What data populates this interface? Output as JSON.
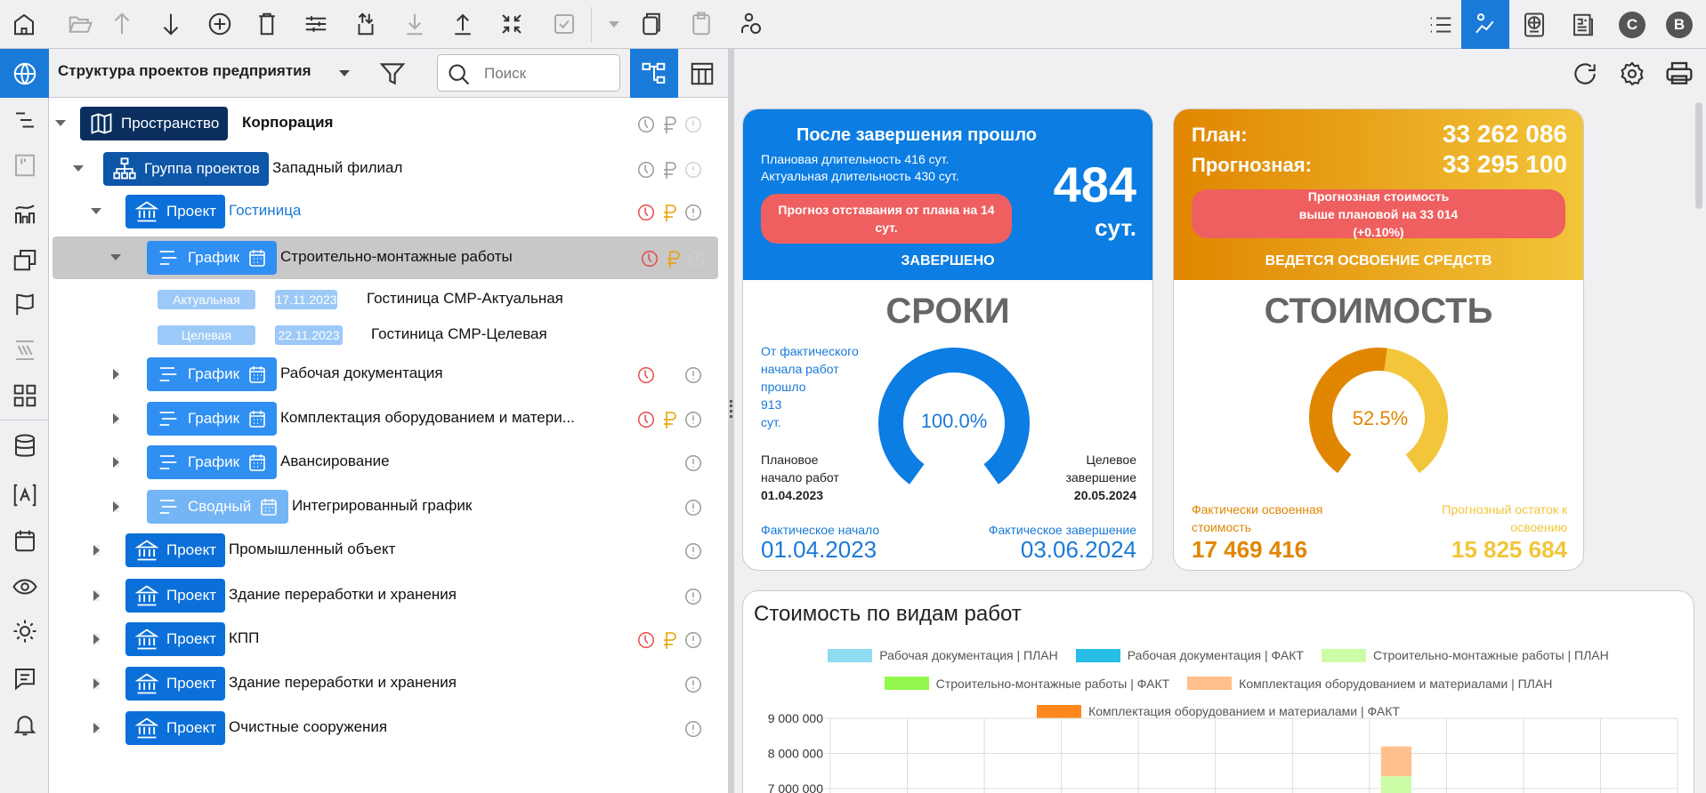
{
  "toolbar": {
    "icons": [
      "home-icon",
      "folder-open-icon",
      "arrow-up-icon",
      "arrow-down-icon",
      "add-circle-icon",
      "trash-icon",
      "sliders-icon",
      "sort-icon",
      "move-down-icon",
      "move-up-icon",
      "collapse-icon",
      "checkbox-icon",
      "dropdown-icon",
      "copy-icon",
      "paste-icon",
      "user-settings-icon"
    ],
    "right_icons": [
      "list-icon",
      "analytics-icon",
      "globe-document-icon",
      "newspaper-icon",
      "c-badge-icon",
      "b-badge-icon"
    ],
    "c_badge": "C",
    "b_badge": "B"
  },
  "panel": {
    "title": "Структура проектов предприятия",
    "search_placeholder": "Поиск"
  },
  "tree": [
    {
      "level": 0,
      "type": "space",
      "chip": "Пространство",
      "name": "Корпорация",
      "bold": true,
      "expanded": true,
      "status": {
        "clock": "gray",
        "ruble": "gray",
        "alert": "light"
      }
    },
    {
      "level": 1,
      "type": "group",
      "chip": "Группа проектов",
      "name": "Западный филиал",
      "expanded": true,
      "status": {
        "clock": "gray",
        "ruble": "gray",
        "alert": "light"
      }
    },
    {
      "level": 2,
      "type": "project",
      "chip": "Проект",
      "name": "Гостиница",
      "link": true,
      "expanded": true,
      "status": {
        "clock": "red",
        "ruble": "orange",
        "alert": "gray"
      }
    },
    {
      "level": 3,
      "type": "graf",
      "chip": "График",
      "name": "Строительно-монтажные работы",
      "expanded": true,
      "selected": true,
      "status": {
        "clock": "red",
        "ruble": "orange",
        "alert": "light"
      }
    },
    {
      "level": 4,
      "type": "version",
      "tag": "Актуальная",
      "date": "17.11.2023",
      "name": "Гостиница СМР-Актуальная"
    },
    {
      "level": 4,
      "type": "version",
      "tag": "Целевая",
      "date": "22.11.2023",
      "name": "Гостиница СМР-Целевая"
    },
    {
      "level": 3,
      "type": "graf",
      "chip": "График",
      "name": "Рабочая документация",
      "status": {
        "clock": "red",
        "alert": "gray"
      }
    },
    {
      "level": 3,
      "type": "graf",
      "chip": "График",
      "name": "Комплектация оборудованием и матери...",
      "status": {
        "clock": "red",
        "ruble": "orange",
        "alert": "gray"
      }
    },
    {
      "level": 3,
      "type": "graf",
      "chip": "График",
      "name": "Авансирование",
      "status": {
        "alert": "gray"
      }
    },
    {
      "level": 3,
      "type": "svod",
      "chip": "Сводный",
      "name": "Интегрированный график",
      "status": {
        "alert": "gray"
      }
    },
    {
      "level": 2,
      "type": "project",
      "chip": "Проект",
      "name": "Промышленный объект",
      "status": {
        "alert": "gray"
      }
    },
    {
      "level": 2,
      "type": "project",
      "chip": "Проект",
      "name": "Здание переработки и хранения",
      "status": {
        "alert": "gray"
      }
    },
    {
      "level": 2,
      "type": "project",
      "chip": "Проект",
      "name": "КПП",
      "status": {
        "clock": "red",
        "ruble": "orange",
        "alert": "gray"
      }
    },
    {
      "level": 2,
      "type": "project",
      "chip": "Проект",
      "name": "Здание переработки и хранения",
      "status": {
        "alert": "gray"
      }
    },
    {
      "level": 2,
      "type": "project",
      "chip": "Проект",
      "name": "Очистные сооружения",
      "status": {
        "alert": "gray"
      }
    }
  ],
  "terms": {
    "header_title": "После завершения прошло",
    "plan_duration": "Плановая длительность 416 сут.",
    "actual_duration": "Актуальная длительность 430 сут.",
    "big_value": "484",
    "big_unit": "сут.",
    "lag": "Прогноз отставания от плана на 14 сут.",
    "state": "ЗАВЕРШЕНО",
    "title": "СРОКИ",
    "elapsed_label": "От фактического начала работ прошло",
    "elapsed_value": "913",
    "elapsed_unit": "сут.",
    "gauge_label": "100.0%",
    "gauge_fraction": 1.0,
    "plan_start_label": "Плановое начало работ",
    "plan_start": "01.04.2023",
    "target_end_label": "Целевое завершение",
    "target_end": "20.05.2024",
    "fact_start_label": "Фактическое начало",
    "fact_start": "01.04.2023",
    "fact_end_label": "Фактическое завершение",
    "fact_end": "03.06.2024",
    "color": "#0b7de3"
  },
  "cost": {
    "plan_label": "План:",
    "plan_value": "33 262 086",
    "forecast_label": "Прогнозная:",
    "forecast_value": "33 295 100",
    "warning": "Прогнозная стоимость выше плановой на 33 014 (+0.10%)",
    "state": "ВЕДЕТСЯ ОСВОЕНИЕ СРЕДСТВ",
    "title": "СТОИМОСТЬ",
    "gauge_label": "52.5%",
    "gauge_fraction": 0.525,
    "earned_label": "Фактически освоенная стоимость",
    "earned_value": "17 469 416",
    "remaining_label": "Прогнозный остаток к освоению",
    "remaining_value": "15 825 684",
    "color_dark": "#e08600",
    "color_light": "#f2c53a"
  },
  "chart_data": {
    "type": "bar",
    "stacked": true,
    "title": "Стоимость по видам работ",
    "legend_position": "top",
    "grid": true,
    "yticks": [
      "9 000 000",
      "8 000 000",
      "7 000 000"
    ],
    "ylim_visible": [
      6900000,
      9000000
    ],
    "series": [
      {
        "name": "Рабочая документация | ПЛАН",
        "color": "#8fdcf2",
        "values": []
      },
      {
        "name": "Рабочая документация | ФАКТ",
        "color": "#27bde6",
        "values": []
      },
      {
        "name": "Строительно-монтажные работы | ПЛАН",
        "color": "#ccfda6",
        "values": [
          null,
          null,
          null,
          null,
          null,
          null,
          null,
          7350000
        ]
      },
      {
        "name": "Строительно-монтажные работы | ФАКТ",
        "color": "#93f84d",
        "values": []
      },
      {
        "name": "Комплектация оборудованием и материалами | ПЛАН",
        "color": "#ffc08d",
        "values": [
          null,
          null,
          null,
          null,
          null,
          null,
          null,
          850000
        ]
      },
      {
        "name": "Комплектация оборудованием и материалами | ФАКТ",
        "color": "#ff871d",
        "values": []
      }
    ]
  }
}
